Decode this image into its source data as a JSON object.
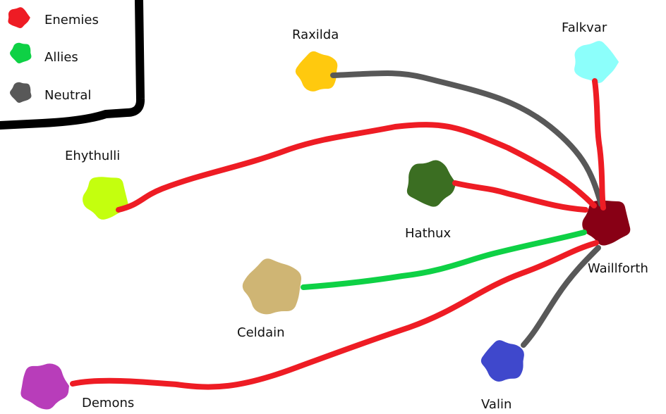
{
  "legend": {
    "items": [
      {
        "label": "Enemies",
        "color": "#ee1c24"
      },
      {
        "label": "Allies",
        "color": "#0ed145"
      },
      {
        "label": "Neutral",
        "color": "#585858"
      }
    ]
  },
  "nodes": [
    {
      "id": "raxilda",
      "label": "Raxilda",
      "color": "#ffc90e"
    },
    {
      "id": "falkvar",
      "label": "Falkvar",
      "color": "#8cfffb"
    },
    {
      "id": "ehythulli",
      "label": "Ehythulli",
      "color": "#c4ff0e"
    },
    {
      "id": "hathux",
      "label": "Hathux",
      "color": "#3b6e22"
    },
    {
      "id": "waillforth",
      "label": "Waillforth",
      "color": "#880015"
    },
    {
      "id": "celdain",
      "label": "Celdain",
      "color": "#cfb574"
    },
    {
      "id": "demons",
      "label": "Demons",
      "color": "#b83dba"
    },
    {
      "id": "valin",
      "label": "Valin",
      "color": "#3f48cc"
    }
  ],
  "edges": [
    {
      "from": "raxilda",
      "to": "waillforth",
      "relation": "Neutral"
    },
    {
      "from": "falkvar",
      "to": "waillforth",
      "relation": "Enemies"
    },
    {
      "from": "ehythulli",
      "to": "waillforth",
      "relation": "Enemies"
    },
    {
      "from": "hathux",
      "to": "waillforth",
      "relation": "Enemies"
    },
    {
      "from": "celdain",
      "to": "waillforth",
      "relation": "Allies"
    },
    {
      "from": "demons",
      "to": "waillforth",
      "relation": "Enemies"
    },
    {
      "from": "valin",
      "to": "waillforth",
      "relation": "Neutral"
    }
  ]
}
